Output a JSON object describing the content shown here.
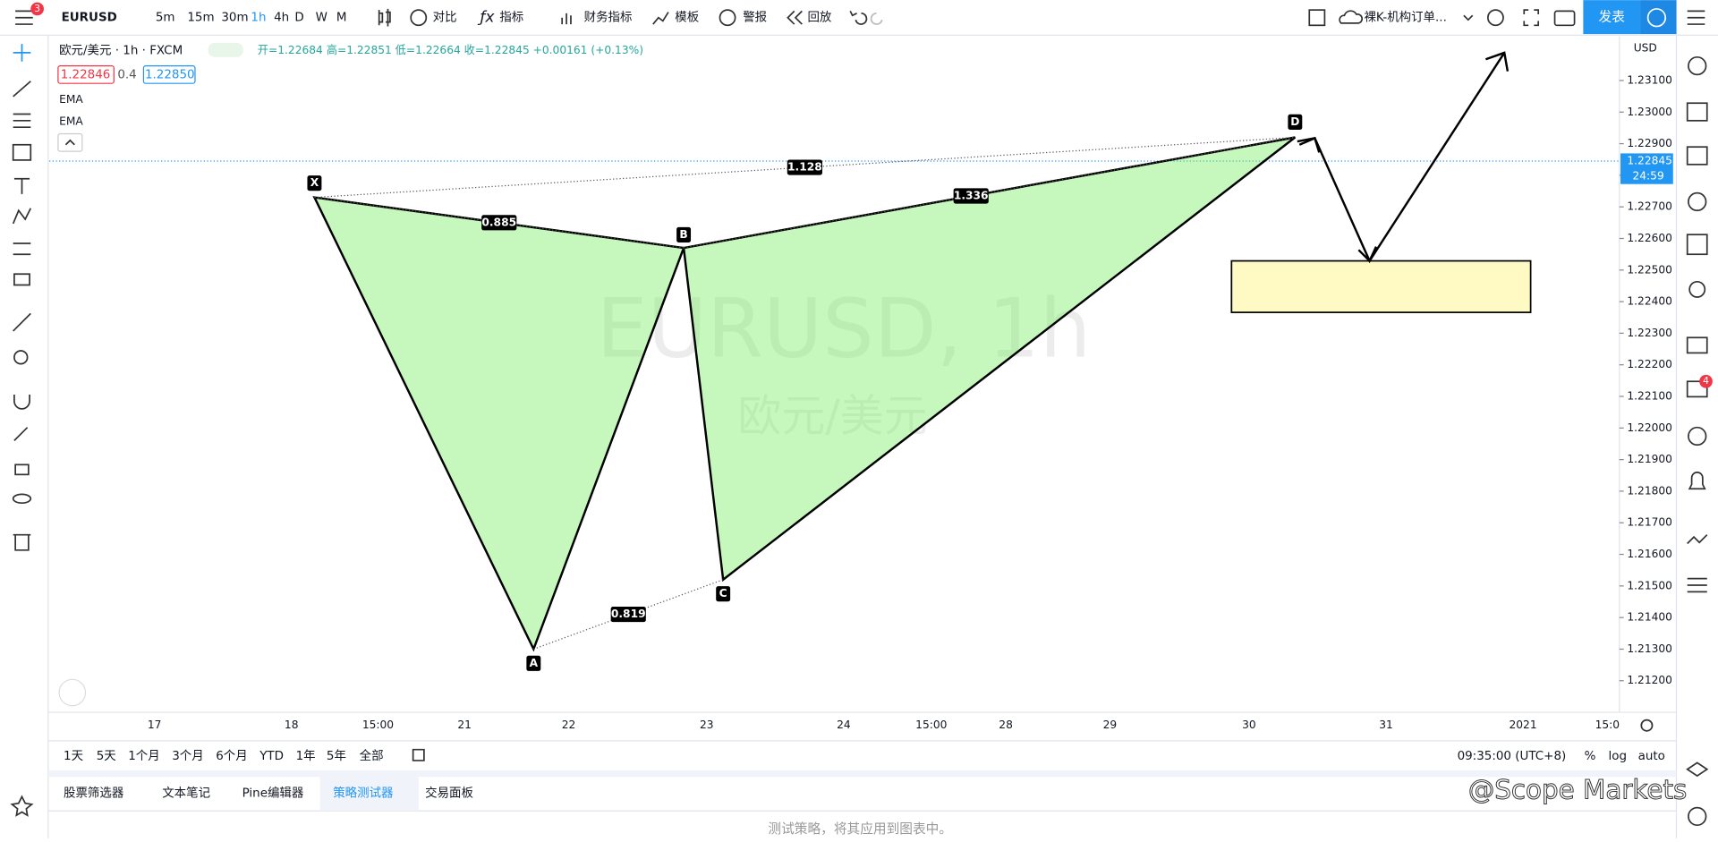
{
  "toolbar": {
    "menu_badge": "3",
    "symbol": "EURUSD",
    "intervals": [
      "5m",
      "15m",
      "30m",
      "1h",
      "4h",
      "D",
      "W",
      "M"
    ],
    "compare": "对比",
    "indicators": "指标",
    "financials": "财务指标",
    "templates": "模板",
    "alert": "警报",
    "replay": "回放",
    "layout_name": "裸K-机构订单...",
    "publish": "发表"
  },
  "legend": {
    "title": "欧元/美元 · 1h · FXCM",
    "ohlc": "开=1.22684 高=1.22851 低=1.22664 收=1.22845 +0.00161 (+0.13%)",
    "bid": "1.22846",
    "spread": "0.4",
    "ask": "1.22850",
    "studies": [
      "EMA",
      "EMA"
    ]
  },
  "watermark": {
    "symbol": "EURUSD, 1h",
    "name": "欧元/美元"
  },
  "chart": {
    "ylim": [
      1.211,
      1.2324
    ],
    "yticks": [
      {
        "value": 1.212,
        "label": "1.21200"
      },
      {
        "value": 1.213,
        "label": "1.21300"
      },
      {
        "value": 1.214,
        "label": "1.21400"
      },
      {
        "value": 1.215,
        "label": "1.21500"
      },
      {
        "value": 1.216,
        "label": "1.21600"
      },
      {
        "value": 1.217,
        "label": "1.21700"
      },
      {
        "value": 1.218,
        "label": "1.21800"
      },
      {
        "value": 1.219,
        "label": "1.21900"
      },
      {
        "value": 1.22,
        "label": "1.22000"
      },
      {
        "value": 1.221,
        "label": "1.22100"
      },
      {
        "value": 1.222,
        "label": "1.22200"
      },
      {
        "value": 1.223,
        "label": "1.22300"
      },
      {
        "value": 1.224,
        "label": "1.22400"
      },
      {
        "value": 1.225,
        "label": "1.22500"
      },
      {
        "value": 1.226,
        "label": "1.22600"
      },
      {
        "value": 1.227,
        "label": "1.22700"
      },
      {
        "value": 1.228,
        "label": "1.22800"
      },
      {
        "value": 1.229,
        "label": "1.22900"
      },
      {
        "value": 1.23,
        "label": "1.23000"
      },
      {
        "value": 1.231,
        "label": "1.23100"
      }
    ],
    "currency": "USD",
    "last_price": {
      "value": 1.22845,
      "label": "1.22845"
    },
    "countdown": "24:59",
    "time_labels": [
      "17",
      "18",
      "15:00",
      "21",
      "22",
      "23",
      "24",
      "15:00",
      "28",
      "29",
      "30",
      "31",
      "2021",
      "15:0"
    ],
    "pattern": {
      "points": [
        {
          "label": "X",
          "price": 1.2273
        },
        {
          "label": "A",
          "price": 1.213
        },
        {
          "label": "B",
          "price": 1.2257
        },
        {
          "label": "C",
          "price": 1.2152
        },
        {
          "label": "D",
          "price": 1.2292
        }
      ],
      "ratios": {
        "xb": "0.885",
        "xd": "1.128",
        "bd": "1.336",
        "ac": "0.819"
      }
    }
  },
  "range_bar": {
    "ranges": [
      "1天",
      "5天",
      "1个月",
      "3个月",
      "6个月",
      "YTD",
      "1年",
      "5年",
      "全部"
    ],
    "time": "09:35:00 (UTC+8)",
    "percent": "%",
    "log": "log",
    "auto": "auto"
  },
  "bottom_panel": {
    "tabs": [
      "股票筛选器",
      "文本笔记",
      "Pine编辑器",
      "策略测试器",
      "交易面板"
    ],
    "message": "测试策略，将其应用到图表中。"
  },
  "sidebar": {
    "chat_badge": "4"
  },
  "credit": "@Scope Markets"
}
